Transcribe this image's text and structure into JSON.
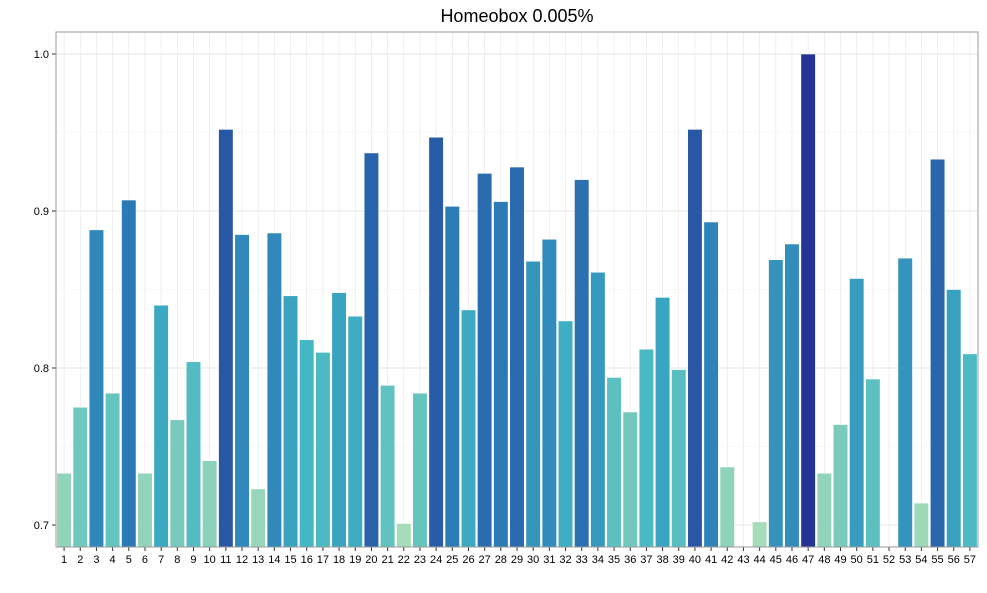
{
  "chart_data": {
    "type": "bar",
    "title": "Homeobox 0.005%",
    "xlabel": "",
    "ylabel": "",
    "categories": [
      "1",
      "2",
      "3",
      "4",
      "5",
      "6",
      "7",
      "8",
      "9",
      "10",
      "11",
      "12",
      "13",
      "14",
      "15",
      "16",
      "17",
      "18",
      "19",
      "20",
      "21",
      "22",
      "23",
      "24",
      "25",
      "26",
      "27",
      "28",
      "29",
      "30",
      "31",
      "32",
      "33",
      "34",
      "35",
      "36",
      "37",
      "38",
      "39",
      "40",
      "41",
      "42",
      "43",
      "44",
      "45",
      "46",
      "47",
      "48",
      "49",
      "50",
      "51",
      "52",
      "53",
      "54",
      "55",
      "56",
      "57"
    ],
    "values": [
      0.733,
      0.775,
      0.888,
      0.784,
      0.907,
      0.733,
      0.84,
      0.767,
      0.804,
      0.741,
      0.952,
      0.885,
      0.723,
      0.886,
      0.846,
      0.818,
      0.81,
      0.848,
      0.833,
      0.937,
      0.789,
      0.701,
      0.784,
      0.947,
      0.903,
      0.837,
      0.924,
      0.906,
      0.928,
      0.868,
      0.882,
      0.83,
      0.92,
      0.861,
      0.794,
      0.772,
      0.812,
      0.845,
      0.799,
      0.952,
      0.893,
      0.737,
      0.686,
      0.702,
      0.869,
      0.879,
      1.0,
      0.733,
      0.764,
      0.857,
      0.793,
      0.686,
      0.87,
      0.714,
      0.933,
      0.85,
      0.809
    ],
    "ylim": [
      0.686,
      1.014
    ],
    "yticks": [
      "0.7",
      "0.8",
      "0.9",
      "1.0"
    ],
    "grid": true,
    "legend": "none",
    "colors": {
      "low": "#a6dcb9",
      "mid_low": "#7fcdbb",
      "mid": "#41b6c4",
      "mid_high": "#2c7fb8",
      "high": "#253494",
      "bar_stroke": "#ffffff",
      "panel_border": "#999999",
      "grid_major": "#e6e6e6",
      "grid_minor": "#f3f3f3"
    }
  }
}
